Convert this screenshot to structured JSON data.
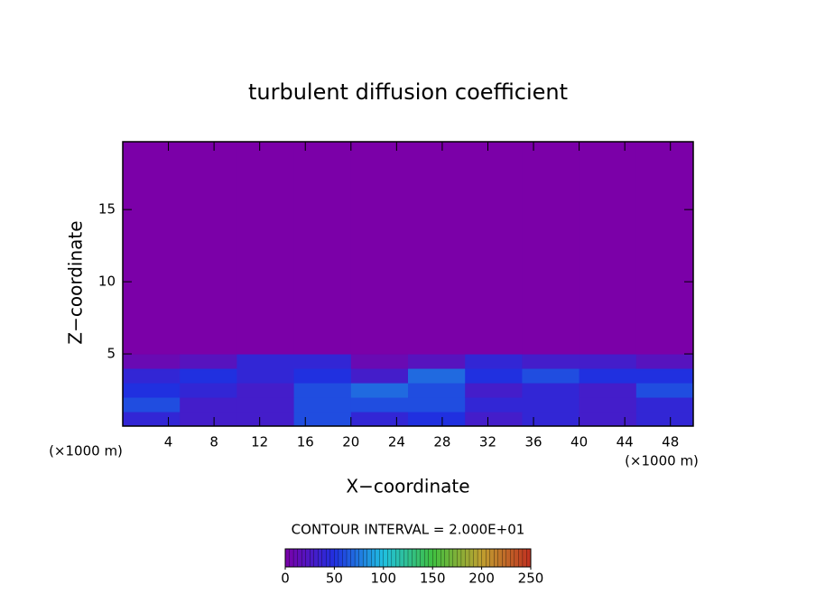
{
  "chart_data": {
    "type": "contour",
    "title": "turbulent diffusion coefficient",
    "xlabel": "X−coordinate",
    "ylabel": "Z−coordinate",
    "xunit": "(×1000 m)",
    "yunit": "(×1000 m)",
    "contour_label": "CONTOUR INTERVAL = 2.000E+01",
    "xbins": [
      0,
      5,
      10,
      15,
      20,
      25,
      30,
      35,
      40,
      45,
      50
    ],
    "ybins": [
      0,
      1,
      2,
      3,
      4,
      5,
      19.7
    ],
    "z": [
      [
        40,
        30,
        30,
        60,
        40,
        50,
        30,
        40,
        30,
        40
      ],
      [
        60,
        30,
        30,
        60,
        60,
        60,
        40,
        40,
        30,
        40
      ],
      [
        50,
        40,
        30,
        60,
        70,
        60,
        30,
        40,
        30,
        60
      ],
      [
        40,
        50,
        40,
        50,
        30,
        70,
        50,
        60,
        50,
        50
      ],
      [
        10,
        20,
        40,
        40,
        10,
        20,
        40,
        30,
        30,
        20
      ],
      [
        0,
        0,
        0,
        0,
        0,
        0,
        0,
        0,
        0,
        0
      ]
    ],
    "xlim": [
      0,
      50
    ],
    "ylim": [
      0,
      19.7
    ],
    "xticks": [
      4,
      8,
      12,
      16,
      20,
      24,
      28,
      32,
      36,
      40,
      44,
      48
    ],
    "yticks": [
      5,
      10,
      15
    ],
    "clim": [
      0,
      250
    ],
    "cticks": [
      0,
      50,
      100,
      150,
      200,
      250
    ],
    "colorscale": [
      "#7b00a8",
      "#2030e0",
      "#20c0e0",
      "#40c040",
      "#c0a030",
      "#c03020"
    ]
  }
}
